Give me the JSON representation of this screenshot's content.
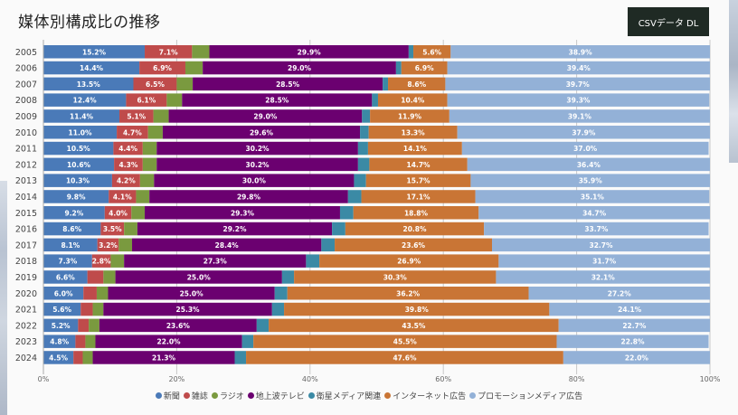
{
  "page": {
    "title": "媒体別構成比の推移",
    "csv_button_label": "CSVデータ DL"
  },
  "chart_data": {
    "type": "bar",
    "orientation": "horizontal",
    "stacked": true,
    "title": "媒体別構成比の推移",
    "xlabel": "",
    "ylabel": "",
    "xlim": [
      0,
      100
    ],
    "x_ticks": [
      "0%",
      "20%",
      "40%",
      "60%",
      "80%",
      "100%"
    ],
    "grid": true,
    "legend_position": "bottom",
    "categories": [
      "2005",
      "2006",
      "2007",
      "2008",
      "2009",
      "2010",
      "2011",
      "2012",
      "2013",
      "2014",
      "2015",
      "2016",
      "2017",
      "2018",
      "2019",
      "2020",
      "2021",
      "2022",
      "2023",
      "2024"
    ],
    "series": [
      {
        "name": "新聞",
        "color": "#4a7ab8",
        "labeled": true,
        "values": [
          15.2,
          14.4,
          13.5,
          12.4,
          11.4,
          11.0,
          10.5,
          10.6,
          10.3,
          9.8,
          9.2,
          8.6,
          8.1,
          7.3,
          6.6,
          6.0,
          5.6,
          5.2,
          4.8,
          4.5
        ]
      },
      {
        "name": "雑誌",
        "color": "#bf4b4b",
        "labeled": true,
        "label_hidden_years": [
          "2019",
          "2020",
          "2021",
          "2022",
          "2023",
          "2024"
        ],
        "values": [
          7.1,
          6.9,
          6.5,
          6.1,
          5.1,
          4.7,
          4.4,
          4.3,
          4.2,
          4.1,
          4.0,
          3.5,
          3.2,
          2.8,
          2.4,
          2.0,
          1.8,
          1.6,
          1.5,
          1.4
        ]
      },
      {
        "name": "ラジオ",
        "color": "#7a9a3f",
        "labeled": false,
        "values": [
          2.6,
          2.6,
          2.4,
          2.3,
          2.3,
          2.2,
          2.1,
          2.1,
          2.1,
          2.0,
          2.0,
          2.0,
          2.0,
          2.0,
          1.8,
          1.7,
          1.6,
          1.6,
          1.5,
          1.5
        ]
      },
      {
        "name": "地上波テレビ",
        "color": "#6b0070",
        "labeled": true,
        "values": [
          29.9,
          29.0,
          28.5,
          28.5,
          29.0,
          29.6,
          30.2,
          30.2,
          30.0,
          29.8,
          29.3,
          29.2,
          28.4,
          27.3,
          25.0,
          25.0,
          25.3,
          23.6,
          22.0,
          21.3
        ]
      },
      {
        "name": "衛星メディア関連",
        "color": "#3b8aa5",
        "labeled": false,
        "values": [
          0.7,
          0.8,
          0.8,
          0.9,
          1.2,
          1.3,
          1.5,
          1.7,
          1.8,
          2.0,
          2.0,
          2.0,
          2.0,
          2.0,
          1.8,
          1.9,
          1.8,
          1.8,
          1.7,
          1.7
        ]
      },
      {
        "name": "インターネット広告",
        "color": "#c97535",
        "labeled": true,
        "values": [
          5.6,
          6.9,
          8.6,
          10.4,
          11.9,
          13.3,
          14.1,
          14.7,
          15.7,
          17.1,
          18.8,
          20.8,
          23.6,
          26.9,
          30.3,
          36.2,
          39.8,
          43.5,
          45.5,
          47.6
        ]
      },
      {
        "name": "プロモーションメディア広告",
        "color": "#93b1d7",
        "labeled": true,
        "values": [
          38.9,
          39.4,
          39.7,
          39.3,
          39.1,
          37.9,
          37.0,
          36.4,
          35.9,
          35.1,
          34.7,
          33.7,
          32.7,
          31.7,
          32.1,
          27.2,
          24.1,
          22.7,
          22.8,
          22.0
        ]
      }
    ]
  },
  "legend": {
    "items": [
      {
        "label": "新聞",
        "color": "#4a7ab8"
      },
      {
        "label": "雑誌",
        "color": "#bf4b4b"
      },
      {
        "label": "ラジオ",
        "color": "#7a9a3f"
      },
      {
        "label": "地上波テレビ",
        "color": "#6b0070"
      },
      {
        "label": "衛星メディア関連",
        "color": "#3b8aa5"
      },
      {
        "label": "インターネット広告",
        "color": "#c97535"
      },
      {
        "label": "プロモーションメディア広告",
        "color": "#93b1d7"
      }
    ]
  }
}
